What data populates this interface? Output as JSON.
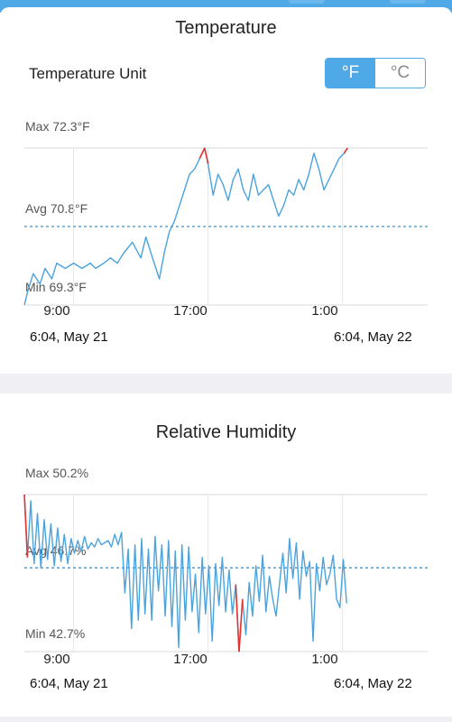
{
  "colors": {
    "accent": "#4ea9e6",
    "line": "#4aa3dd",
    "extreme": "#e3342f",
    "grid": "#d8d8d8"
  },
  "temperature": {
    "title": "Temperature",
    "unit_label": "Temperature Unit",
    "unit_options": [
      "°F",
      "°C"
    ],
    "selected_unit": "°F",
    "max_label": "Max 72.3°F",
    "avg_label": "Avg 70.8°F",
    "min_label": "Min 69.3°F",
    "x_ticks": [
      "9:00",
      "17:00",
      "1:00"
    ],
    "start_date": "6:04,  May 21",
    "end_date": "6:04,  May 22"
  },
  "humidity": {
    "title": "Relative Humidity",
    "max_label": "Max 50.2%",
    "avg_label": "Avg 46.7%",
    "min_label": "Min 42.7%",
    "x_ticks": [
      "9:00",
      "17:00",
      "1:00"
    ],
    "start_date": "6:04,  May 21",
    "end_date": "6:04,  May 22"
  },
  "chart_data": [
    {
      "type": "line",
      "title": "Temperature",
      "x_hours": [
        6.07,
        6.3,
        6.6,
        7.0,
        7.3,
        7.7,
        8.0,
        8.5,
        9.0,
        9.5,
        10.0,
        10.3,
        10.8,
        11.2,
        11.6,
        12.0,
        12.5,
        13.0,
        13.3,
        13.6,
        13.9,
        14.1,
        14.4,
        14.7,
        15.0,
        15.3,
        15.6,
        15.9,
        16.2,
        16.5,
        16.8,
        17.0,
        17.3,
        17.6,
        17.9,
        18.2,
        18.5,
        18.8,
        19.1,
        19.4,
        19.7,
        20.0,
        20.3,
        20.6,
        20.9,
        21.2,
        21.5,
        21.8,
        22.1,
        22.4,
        22.7,
        23.0,
        23.3,
        23.6,
        23.9,
        24.2,
        24.5,
        24.8,
        25.1,
        25.3
      ],
      "y": [
        69.3,
        69.6,
        69.9,
        69.7,
        70.0,
        69.8,
        70.1,
        70.0,
        70.1,
        70.0,
        70.1,
        70.0,
        70.1,
        70.2,
        70.1,
        70.3,
        70.5,
        70.2,
        70.6,
        70.3,
        70.0,
        69.8,
        70.3,
        70.7,
        70.9,
        71.2,
        71.5,
        71.8,
        71.9,
        72.1,
        72.3,
        72.0,
        71.4,
        71.8,
        71.6,
        71.3,
        71.7,
        71.9,
        71.5,
        71.3,
        71.8,
        71.4,
        71.5,
        71.6,
        71.3,
        71.0,
        71.2,
        71.5,
        71.4,
        71.7,
        71.5,
        71.8,
        72.2,
        71.9,
        71.5,
        71.7,
        71.9,
        72.1,
        72.2,
        72.3
      ],
      "max": 72.3,
      "avg": 70.8,
      "min": 69.3,
      "unit": "°F",
      "x_ticks": [
        "9:00",
        "17:00",
        "1:00"
      ]
    },
    {
      "type": "line",
      "title": "Relative Humidity",
      "x_hours": [
        6.07,
        6.25,
        6.45,
        6.65,
        6.85,
        7.05,
        7.25,
        7.45,
        7.65,
        7.85,
        8.05,
        8.25,
        8.45,
        8.65,
        8.85,
        9.05,
        9.25,
        9.45,
        9.65,
        9.85,
        10.05,
        10.25,
        10.45,
        10.65,
        10.85,
        11.05,
        11.25,
        11.45,
        11.65,
        11.85,
        12.05,
        12.25,
        12.45,
        12.65,
        12.85,
        13.05,
        13.25,
        13.45,
        13.65,
        13.85,
        14.05,
        14.25,
        14.45,
        14.65,
        14.85,
        15.05,
        15.25,
        15.45,
        15.65,
        15.85,
        16.05,
        16.25,
        16.45,
        16.65,
        16.85,
        17.05,
        17.25,
        17.45,
        17.65,
        17.85,
        18.05,
        18.25,
        18.45,
        18.65,
        18.85,
        19.05,
        19.25,
        19.45,
        19.65,
        19.85,
        20.05,
        20.25,
        20.45,
        20.65,
        20.85,
        21.05,
        21.25,
        21.45,
        21.65,
        21.85,
        22.05,
        22.25,
        22.45,
        22.65,
        22.85,
        23.05,
        23.25,
        23.45,
        23.65,
        23.85,
        24.05,
        24.25,
        24.45,
        24.65,
        24.85,
        25.05,
        25.25
      ],
      "y": [
        50.2,
        47.2,
        49.9,
        46.9,
        49.3,
        46.7,
        49.0,
        47.1,
        48.8,
        46.8,
        48.6,
        47.0,
        48.3,
        46.9,
        48.1,
        47.4,
        48.0,
        47.5,
        48.2,
        47.6,
        47.9,
        47.7,
        48.1,
        47.8,
        47.9,
        48.0,
        47.7,
        48.3,
        47.8,
        48.4,
        45.5,
        47.6,
        43.8,
        47.8,
        44.2,
        48.1,
        44.5,
        47.6,
        44.2,
        48.2,
        45.6,
        47.8,
        44.4,
        48.0,
        43.9,
        47.5,
        42.9,
        47.8,
        44.2,
        47.7,
        44.6,
        46.4,
        43.6,
        47.2,
        44.5,
        46.8,
        43.2,
        46.9,
        44.9,
        47.2,
        44.6,
        46.6,
        44.5,
        45.9,
        42.7,
        45.2,
        43.5,
        46.0,
        44.4,
        46.8,
        45.1,
        47.3,
        44.6,
        46.3,
        45.2,
        44.4,
        45.9,
        47.4,
        45.5,
        48.1,
        46.2,
        47.9,
        45.2,
        47.5,
        46.3,
        47.0,
        43.2,
        46.9,
        45.6,
        47.2,
        45.9,
        46.4,
        47.3,
        45.2,
        44.8,
        47.1,
        45.0
      ],
      "max": 50.2,
      "avg": 46.7,
      "min": 42.7,
      "unit": "%",
      "x_ticks": [
        "9:00",
        "17:00",
        "1:00"
      ]
    }
  ]
}
